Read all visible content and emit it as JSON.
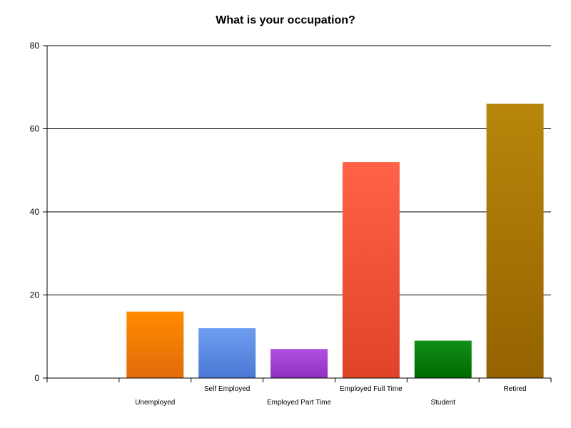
{
  "chart_data": {
    "type": "bar",
    "title": "What is your occupation?",
    "xlabel": "",
    "ylabel": "",
    "categories": [
      "Unemployed",
      "Self Employed",
      "Employed Part Time",
      "Employed Full Time",
      "Student",
      "Retired"
    ],
    "values": [
      16,
      12,
      7,
      52,
      9,
      66
    ],
    "ylim": [
      0,
      80
    ],
    "yticks": [
      0,
      20,
      40,
      60,
      80
    ],
    "grid": true,
    "legend": "none",
    "colors": [
      {
        "top": "#ff8c00",
        "bottom": "#e26a0a"
      },
      {
        "top": "#6e9ef0",
        "bottom": "#4a78d4"
      },
      {
        "top": "#b14fe0",
        "bottom": "#9030c0"
      },
      {
        "top": "#ff6247",
        "bottom": "#e04428"
      },
      {
        "top": "#11901a",
        "bottom": "#006a00"
      },
      {
        "top": "#b8870b",
        "bottom": "#946200"
      }
    ]
  }
}
